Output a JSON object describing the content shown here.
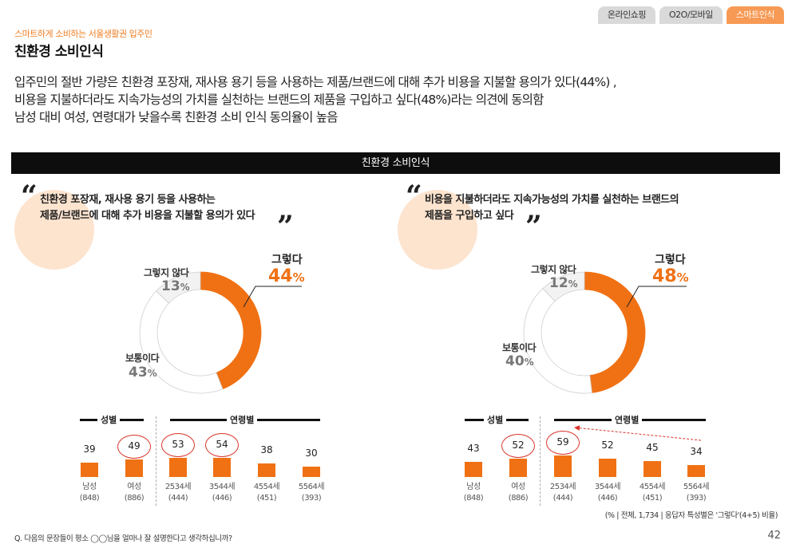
{
  "nav": {
    "tabs": [
      {
        "label": "온라인쇼핑",
        "active": false
      },
      {
        "label": "O2O/모바일",
        "active": false
      },
      {
        "label": "스마트인식",
        "active": true
      }
    ]
  },
  "header": {
    "subtitle": "스마트하게 소비하는 서울생활권 입주민",
    "title": "친환경 소비인식"
  },
  "summary": [
    "입주민의 절반 가량은 친환경 포장재, 재사용 용기 등을 사용하는 제품/브랜드에 대해 추가 비용을 지불할 용의가 있다(44%) ,",
    "비용을 지불하더라도 지속가능성의 가치를 실천하는 브랜드의 제품을 구입하고 싶다(48%)라는 의견에 동의함",
    "남성 대비 여성, 연령대가 낮을수록 친환경 소비 인식 동의율이 높음"
  ],
  "section_title": "친환경 소비인식",
  "colors": {
    "accent": "#f07114",
    "neutral": "#f2f2f2",
    "ring": "#d9352b"
  },
  "chart_data": [
    {
      "type": "pie",
      "question_lines": [
        "친환경 포장재, 재사용 용기 등을 사용하는",
        "제품/브랜드에 대해 추가 비용을 지불할 용의가 있다"
      ],
      "slices": [
        {
          "label": "그렇다",
          "value": 44
        },
        {
          "label": "보통이다",
          "value": 43
        },
        {
          "label": "그렇지 않다",
          "value": 13
        }
      ],
      "group_labels": {
        "gender": "성별",
        "age": "연령별"
      },
      "breakdown": {
        "type": "bar",
        "categories": [
          {
            "name": "남성",
            "n": "(848)"
          },
          {
            "name": "여성",
            "n": "(886)"
          },
          {
            "name": "2534세",
            "n": "(444)"
          },
          {
            "name": "3544세",
            "n": "(446)"
          },
          {
            "name": "4554세",
            "n": "(451)"
          },
          {
            "name": "5564세",
            "n": "(393)"
          }
        ],
        "values": [
          39,
          49,
          53,
          54,
          38,
          30
        ],
        "highlighted": [
          1,
          2,
          3
        ]
      }
    },
    {
      "type": "pie",
      "question_lines": [
        "비용을 지불하더라도 지속가능성의 가치를 실천하는 브랜드의",
        "제품을 구입하고 싶다"
      ],
      "slices": [
        {
          "label": "그렇다",
          "value": 48
        },
        {
          "label": "보통이다",
          "value": 40
        },
        {
          "label": "그렇지 않다",
          "value": 12
        }
      ],
      "group_labels": {
        "gender": "성별",
        "age": "연령별"
      },
      "breakdown": {
        "type": "bar",
        "categories": [
          {
            "name": "남성",
            "n": "(848)"
          },
          {
            "name": "여성",
            "n": "(886)"
          },
          {
            "name": "2534세",
            "n": "(444)"
          },
          {
            "name": "3544세",
            "n": "(446)"
          },
          {
            "name": "4554세",
            "n": "(451)"
          },
          {
            "name": "5564세",
            "n": "(393)"
          }
        ],
        "values": [
          43,
          52,
          59,
          52,
          45,
          34
        ],
        "highlighted": [
          1,
          2
        ]
      }
    }
  ],
  "footnote": "(% | 전체, 1,734 | 응답자 특성별은 '그렇다'(4+5) 비율)",
  "footer_question": "Q. 다음의 문장들이 평소 ◯◯님을 얼마나 잘 설명한다고 생각하십니까?",
  "page_number": "42"
}
